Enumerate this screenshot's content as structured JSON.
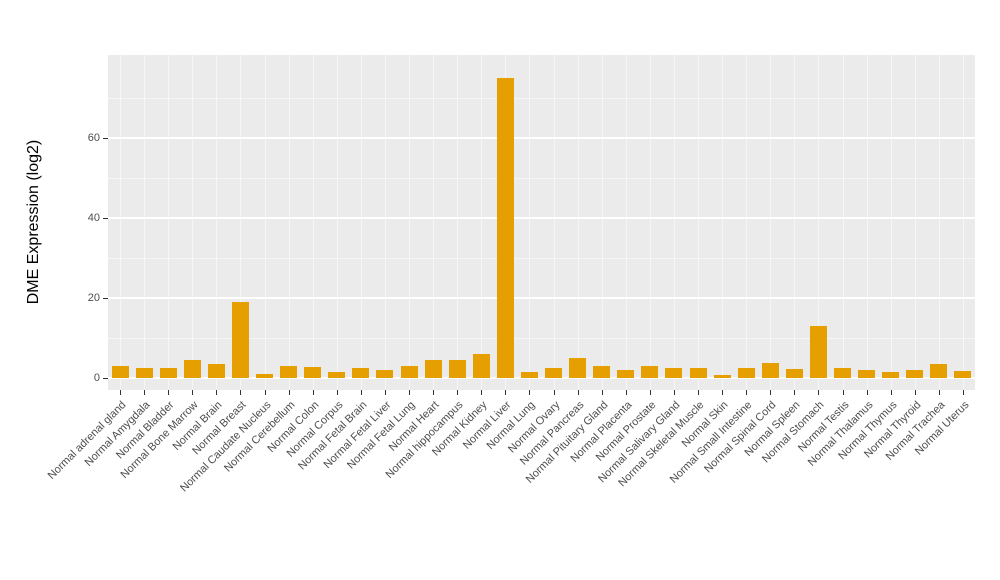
{
  "chart_data": {
    "type": "bar",
    "title": "",
    "ylabel": "DME Expression (log2)",
    "xlabel": "",
    "ylim": [
      0,
      79
    ],
    "yticks": [
      0,
      20,
      40,
      60
    ],
    "yticks_minor": [
      10,
      30,
      50,
      70
    ],
    "grid": true,
    "legend": "none",
    "bar_color": "#E69F00",
    "panel_background": "#EBEBEB",
    "gridline_color": "#FFFFFF",
    "tick_label_color": "#4D4D4D",
    "categories": [
      "Normal adrenal gland",
      "Normal Amygdala",
      "Normal Bladder",
      "Normal Bone Marrow",
      "Normal Brain",
      "Normal Breast",
      "Normal Caudate Nucleus",
      "Normal Cerebellum",
      "Normal Colon",
      "Normal Corpus",
      "Normal Fetal Brain",
      "Normal Fetal Liver",
      "Normal Fetal Lung",
      "Normal Heart",
      "Normal hippocampus",
      "Normal Kidney",
      "Normal Liver",
      "Normal Lung",
      "Normal Ovary",
      "Normal Pancreas",
      "Normal Pituitary Gland",
      "Normal Placenta",
      "Normal Prostate",
      "Normal Salivary Gland",
      "Normal Skeletal Muscle",
      "Normal Skin",
      "Normal Small Intestine",
      "Normal Spinal Cord",
      "Normal Spleen",
      "Normal Stomach",
      "Normal Testis",
      "Normal Thalamus",
      "Normal Thymus",
      "Normal Thyroid",
      "Normal Trachea",
      "Normal Uterus"
    ],
    "values": [
      3,
      2.5,
      2.5,
      4.5,
      3.5,
      19,
      1,
      3,
      2.8,
      1.5,
      2.5,
      2,
      3,
      4.5,
      4.5,
      6,
      75,
      1.5,
      2.5,
      5,
      3,
      2,
      3,
      2.5,
      2.5,
      0.8,
      2.5,
      3.8,
      2.2,
      13,
      2.5,
      2,
      1.5,
      2,
      3.5,
      1.7
    ]
  }
}
